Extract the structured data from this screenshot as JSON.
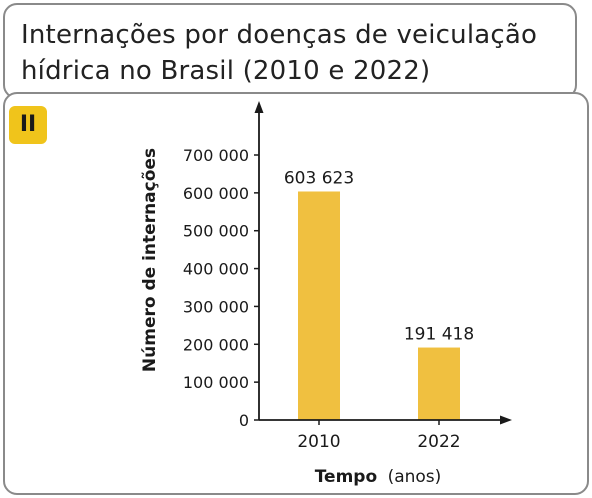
{
  "figure": {
    "title_line1": "Internações por doenças de veiculação",
    "title_line2": "hídrica no Brasil (2010 e 2022)",
    "badge": "II"
  },
  "chart_data": {
    "type": "bar",
    "categories": [
      "2010",
      "2022"
    ],
    "values": [
      603623,
      191418
    ],
    "value_labels": [
      "603 623",
      "191 418"
    ],
    "ylim": [
      0,
      700000
    ],
    "yticks": [
      0,
      100000,
      200000,
      300000,
      400000,
      500000,
      600000,
      700000
    ],
    "ytick_labels": [
      "0",
      "100 000",
      "200 000",
      "300 000",
      "400 000",
      "500 000",
      "600 000",
      "700 000"
    ],
    "ylabel": "Número de internações",
    "xlabel": "Tempo",
    "xlabel_unit": "(anos)",
    "bar_color": "#f0c040",
    "grid": false
  }
}
